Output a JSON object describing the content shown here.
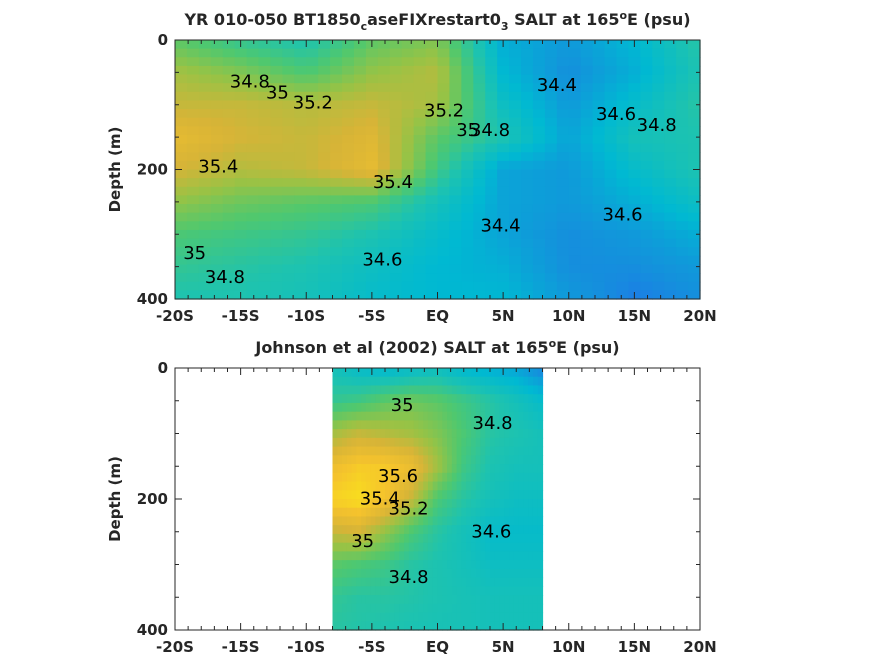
{
  "chart_data": [
    {
      "type": "heatmap",
      "title_parts": [
        "YR 010-050 BT1850",
        "c",
        "aseFIXrestart0",
        "3",
        " SALT at 165",
        "o",
        "E (psu)"
      ],
      "ylabel": "Depth (m)",
      "xlim": [
        -20,
        20
      ],
      "ylim": [
        0,
        400
      ],
      "y_reversed": true,
      "x_ticks": [
        -20,
        -15,
        -10,
        -5,
        0,
        5,
        10,
        15,
        20
      ],
      "x_tick_labels": [
        "-20S",
        "-15S",
        "-10S",
        "-5S",
        "EQ",
        "5N",
        "10N",
        "15N",
        "20N"
      ],
      "y_ticks": [
        0,
        200,
        400
      ],
      "y_tick_labels": [
        "0",
        "200",
        "400"
      ],
      "x": [
        -20,
        -15,
        -10,
        -5,
        0,
        5,
        10,
        15,
        20
      ],
      "y": [
        0,
        50,
        100,
        150,
        200,
        250,
        300,
        350,
        400
      ],
      "z": [
        [
          35.0,
          34.85,
          34.75,
          35.0,
          35.1,
          34.5,
          34.4,
          34.55,
          34.8
        ],
        [
          35.2,
          35.1,
          34.95,
          35.15,
          35.25,
          34.55,
          34.35,
          34.5,
          34.75
        ],
        [
          35.3,
          35.3,
          35.25,
          35.3,
          35.2,
          34.65,
          34.4,
          34.6,
          34.8
        ],
        [
          35.45,
          35.35,
          35.3,
          35.4,
          35.0,
          34.75,
          34.45,
          34.7,
          34.75
        ],
        [
          35.35,
          35.25,
          35.3,
          35.45,
          34.9,
          34.45,
          34.4,
          34.6,
          34.75
        ],
        [
          35.15,
          35.05,
          35.0,
          34.95,
          34.7,
          34.45,
          34.4,
          34.5,
          34.65
        ],
        [
          34.95,
          34.9,
          34.85,
          34.75,
          34.6,
          34.45,
          34.35,
          34.4,
          34.5
        ],
        [
          34.85,
          34.8,
          34.75,
          34.65,
          34.55,
          34.5,
          34.35,
          34.35,
          34.4
        ],
        [
          34.75,
          34.75,
          34.7,
          34.6,
          34.55,
          34.55,
          34.4,
          34.3,
          34.35
        ]
      ],
      "color_range": [
        34.2,
        35.8
      ],
      "contour_labels": [
        {
          "text": "34.8",
          "x": -14.3,
          "y": 65
        },
        {
          "text": "35",
          "x": -12.2,
          "y": 82
        },
        {
          "text": "35.2",
          "x": -9.5,
          "y": 97
        },
        {
          "text": "35.4",
          "x": -16.7,
          "y": 196
        },
        {
          "text": "35.4",
          "x": -3.4,
          "y": 220
        },
        {
          "text": "35.2",
          "x": 0.5,
          "y": 110
        },
        {
          "text": "35",
          "x": 2.3,
          "y": 140
        },
        {
          "text": "34.8",
          "x": 4.0,
          "y": 140
        },
        {
          "text": "34.4",
          "x": 9.1,
          "y": 70
        },
        {
          "text": "34.6",
          "x": 13.6,
          "y": 115
        },
        {
          "text": "34.8",
          "x": 16.7,
          "y": 132
        },
        {
          "text": "34.6",
          "x": 14.1,
          "y": 270
        },
        {
          "text": "34.4",
          "x": 4.8,
          "y": 287
        },
        {
          "text": "34.6",
          "x": -4.2,
          "y": 340
        },
        {
          "text": "34.8",
          "x": -16.2,
          "y": 367
        },
        {
          "text": "35",
          "x": -18.5,
          "y": 330
        }
      ]
    },
    {
      "type": "heatmap",
      "title_parts": [
        "Johnson et al (2002) SALT at 165",
        "o",
        "E (psu)"
      ],
      "ylabel": "Depth (m)",
      "xlim": [
        -20,
        20
      ],
      "ylim": [
        0,
        400
      ],
      "y_reversed": true,
      "data_xlim": [
        -8,
        8
      ],
      "x_ticks": [
        -20,
        -15,
        -10,
        -5,
        0,
        5,
        10,
        15,
        20
      ],
      "x_tick_labels": [
        "-20S",
        "-15S",
        "-10S",
        "-5S",
        "EQ",
        "5N",
        "10N",
        "15N",
        "20N"
      ],
      "y_ticks": [
        0,
        200,
        400
      ],
      "y_tick_labels": [
        "0",
        "200",
        "400"
      ],
      "x": [
        -8,
        -6,
        -4,
        -2,
        0,
        2,
        4,
        6,
        8
      ],
      "y": [
        0,
        50,
        100,
        150,
        200,
        250,
        300,
        350,
        400
      ],
      "z": [
        [
          34.7,
          34.6,
          34.55,
          34.6,
          34.65,
          34.55,
          34.5,
          34.45,
          34.3
        ],
        [
          34.85,
          34.9,
          35.0,
          35.05,
          35.0,
          34.9,
          34.8,
          34.7,
          34.6
        ],
        [
          35.2,
          35.3,
          35.25,
          35.2,
          35.1,
          34.95,
          34.8,
          34.75,
          34.7
        ],
        [
          35.5,
          35.6,
          35.6,
          35.5,
          35.2,
          34.9,
          34.75,
          34.7,
          34.7
        ],
        [
          35.65,
          35.7,
          35.55,
          35.3,
          34.95,
          34.8,
          34.7,
          34.65,
          34.65
        ],
        [
          35.3,
          35.35,
          35.15,
          34.95,
          34.8,
          34.7,
          34.6,
          34.6,
          34.6
        ],
        [
          35.0,
          34.95,
          34.9,
          34.8,
          34.75,
          34.7,
          34.65,
          34.65,
          34.65
        ],
        [
          34.85,
          34.8,
          34.8,
          34.78,
          34.75,
          34.72,
          34.7,
          34.7,
          34.7
        ],
        [
          34.8,
          34.78,
          34.76,
          34.74,
          34.72,
          34.72,
          34.7,
          34.7,
          34.7
        ]
      ],
      "color_range": [
        34.2,
        35.8
      ],
      "contour_labels": [
        {
          "text": "35",
          "x": -2.7,
          "y": 57
        },
        {
          "text": "34.8",
          "x": 4.2,
          "y": 85
        },
        {
          "text": "35.6",
          "x": -3.0,
          "y": 166
        },
        {
          "text": "35.4",
          "x": -4.4,
          "y": 200
        },
        {
          "text": "35.2",
          "x": -2.2,
          "y": 215
        },
        {
          "text": "34.6",
          "x": 4.1,
          "y": 250
        },
        {
          "text": "35",
          "x": -5.7,
          "y": 265
        },
        {
          "text": "34.8",
          "x": -2.2,
          "y": 320
        }
      ]
    }
  ]
}
